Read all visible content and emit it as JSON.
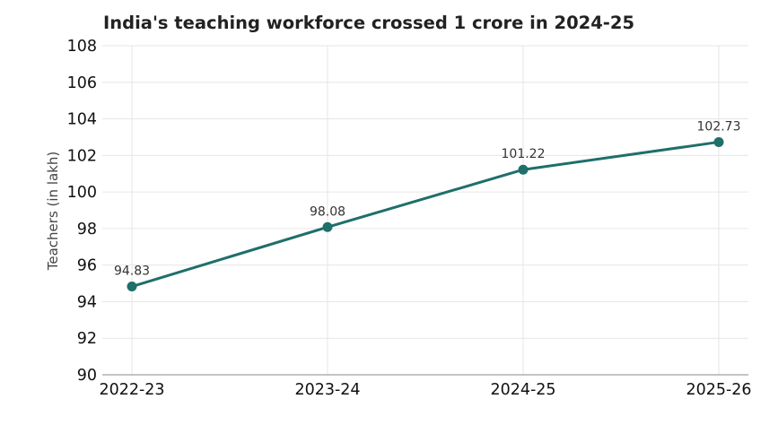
{
  "chart_data": {
    "type": "line",
    "title": "India's teaching workforce crossed 1 crore in 2024-25",
    "xlabel": "",
    "ylabel": "Teachers (in lakh)",
    "categories": [
      "2022-23",
      "2023-24",
      "2024-25",
      "2025-26"
    ],
    "series": [
      {
        "values": [
          94.83,
          98.08,
          101.22,
          102.73
        ]
      }
    ],
    "data_labels": [
      "94.83",
      "98.08",
      "101.22",
      "102.73"
    ],
    "ylim": [
      90,
      108
    ],
    "yticks": [
      90,
      92,
      94,
      96,
      98,
      100,
      102,
      104,
      106,
      108
    ],
    "grid": true,
    "legend": "none",
    "colors": {
      "line": "#1f6f6b",
      "grid": "#e6e6e6",
      "axis": "#888888"
    }
  }
}
